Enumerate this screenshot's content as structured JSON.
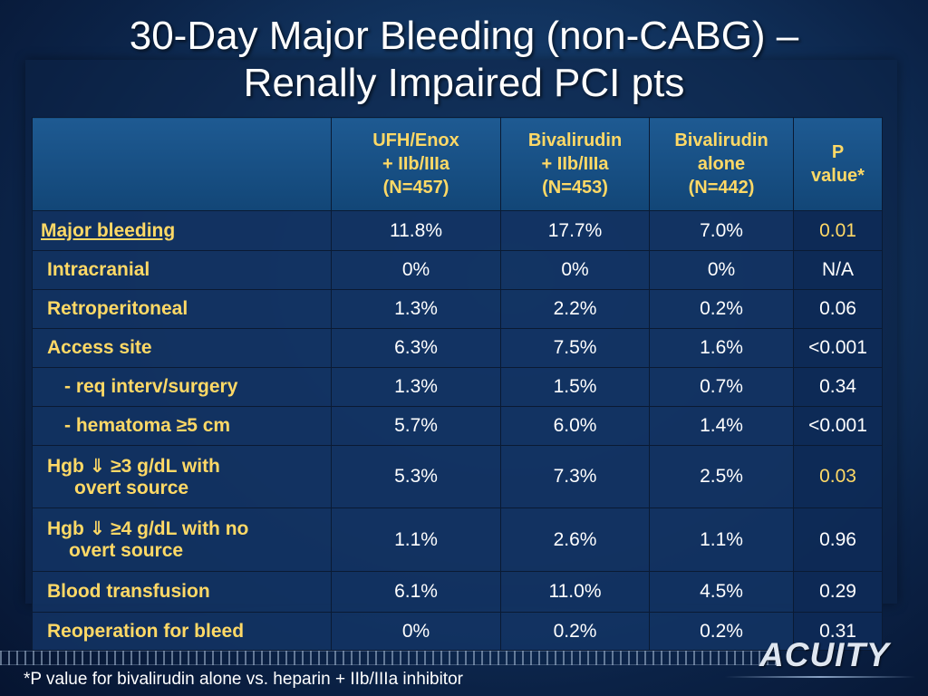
{
  "title": {
    "line1": "30-Day Major Bleeding (non-CABG) –",
    "line2": "Renally Impaired PCI pts"
  },
  "table": {
    "headers": [
      {
        "lines": [
          "UFH/Enox",
          "+ IIb/IIIa",
          "(N=457)"
        ]
      },
      {
        "lines": [
          "Bivalirudin",
          "+ IIb/IIIa",
          "(N=453)"
        ]
      },
      {
        "lines": [
          "Bivalirudin",
          "alone",
          "(N=442)"
        ]
      },
      {
        "lines": [
          "P",
          "value*"
        ]
      }
    ],
    "rows": [
      {
        "label": "Major bleeding",
        "v1": "11.8%",
        "v2": "17.7%",
        "v3": "7.0%",
        "p": "0.01"
      },
      {
        "label": "Intracranial",
        "v1": "0%",
        "v2": "0%",
        "v3": "0%",
        "p": "N/A"
      },
      {
        "label": "Retroperitoneal",
        "v1": "1.3%",
        "v2": "2.2%",
        "v3": "0.2%",
        "p": "0.06"
      },
      {
        "label": "Access site",
        "v1": "6.3%",
        "v2": "7.5%",
        "v3": "1.6%",
        "p": "<0.001"
      },
      {
        "label": "- req interv/surgery",
        "v1": "1.3%",
        "v2": "1.5%",
        "v3": "0.7%",
        "p": "0.34"
      },
      {
        "label": "- hematoma ≥5 cm",
        "v1": "5.7%",
        "v2": "6.0%",
        "v3": "1.4%",
        "p": "<0.001"
      },
      {
        "label_line1": "Hgb ⇓ ≥3 g/dL with",
        "label_line2": "overt source",
        "v1": "5.3%",
        "v2": "7.3%",
        "v3": "2.5%",
        "p": "0.03"
      },
      {
        "label_line1": "Hgb ⇓ ≥4 g/dL with no",
        "label_line2": "overt source",
        "v1": "1.1%",
        "v2": "2.6%",
        "v3": "1.1%",
        "p": "0.96"
      },
      {
        "label": "Blood transfusion",
        "v1": "6.1%",
        "v2": "11.0%",
        "v3": "4.5%",
        "p": "0.29"
      },
      {
        "label": "Reoperation for bleed",
        "v1": "0%",
        "v2": "0.2%",
        "v3": "0.2%",
        "p": "0.31"
      }
    ]
  },
  "footnote": "*P value for bivalirudin alone vs. heparin + IIb/IIIa inhibitor",
  "logo": "ACUITY",
  "colors": {
    "label_yellow": "#ffd966",
    "background_blue": "#143a68",
    "text_white": "#ffffff"
  }
}
